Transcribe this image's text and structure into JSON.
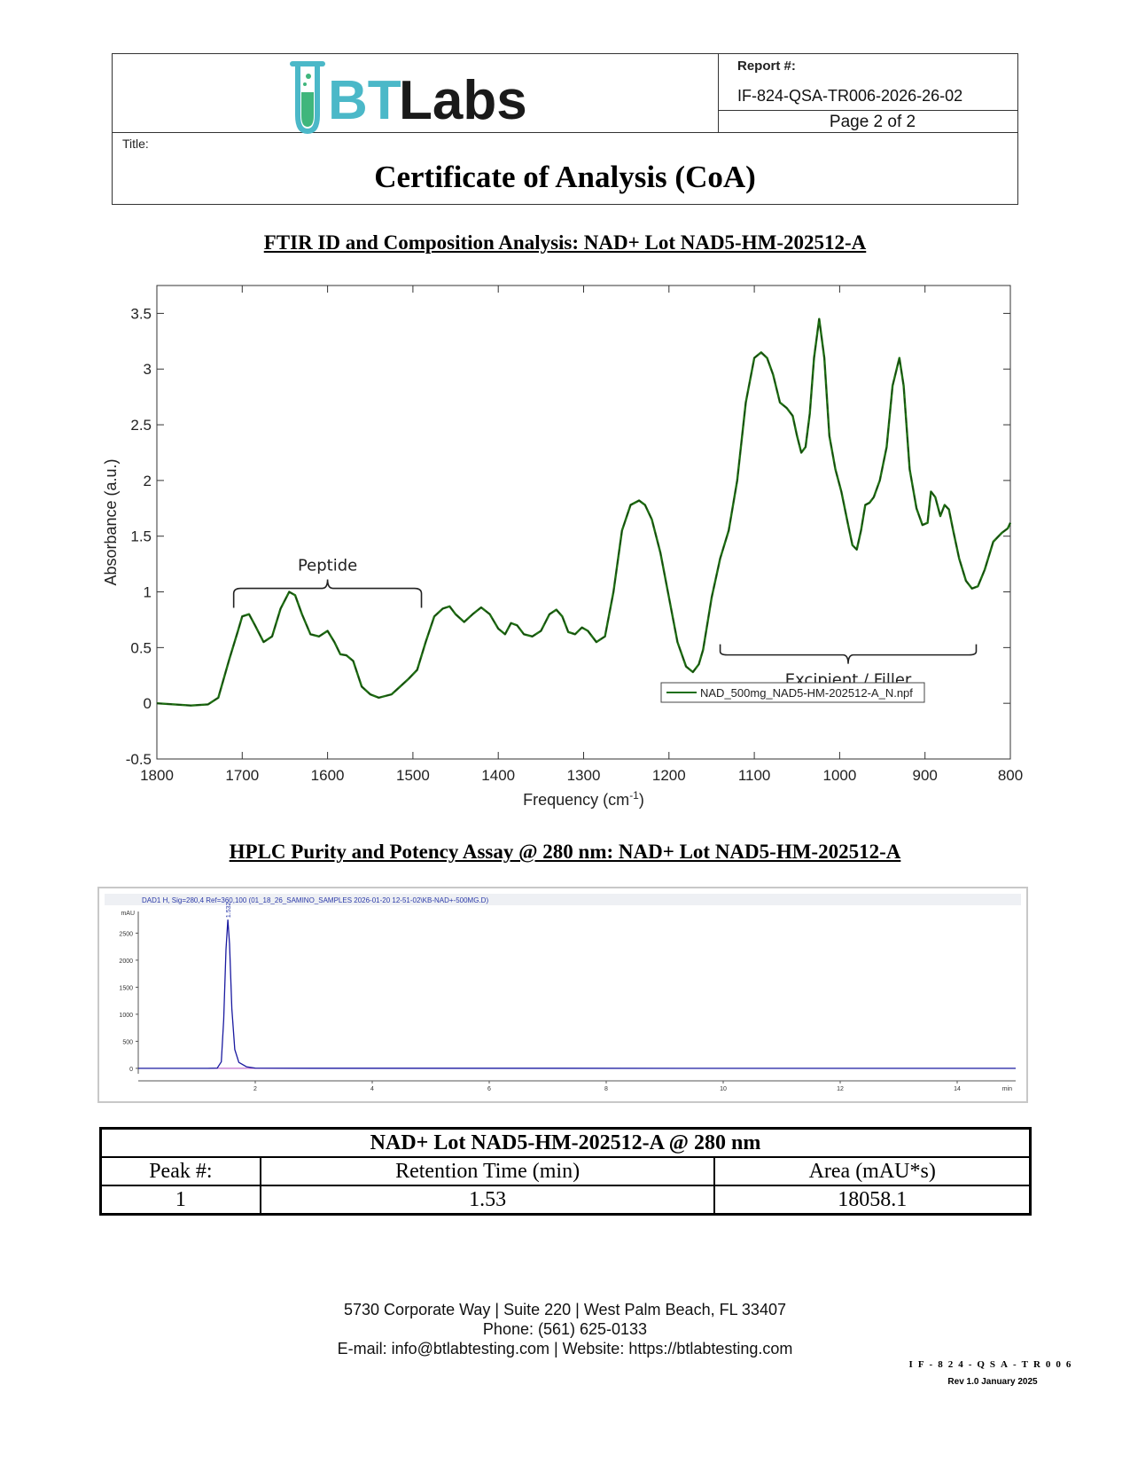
{
  "header": {
    "logo_text_bt": "BT",
    "logo_text_labs": "Labs",
    "report_label": "Report #:",
    "report_number": "IF-824-QSA-TR006-2026-26-02",
    "page_indicator": "Page 2 of 2",
    "title_label": "Title:",
    "doc_title": "Certificate of Analysis (CoA)"
  },
  "colors": {
    "logo_teal": "#4bb8c8",
    "logo_green": "#3fb67c",
    "ftir_line": "#1e6f12",
    "hplc_trace": "#1a1aa0",
    "hplc_baseline": "#b050c0"
  },
  "ftir": {
    "section_title": "FTIR ID and Composition Analysis: NAD+  Lot NAD5-HM-202512-A",
    "annotation_peptide": "Peptide",
    "annotation_excipient": "Excipient / Filler"
  },
  "hplc": {
    "section_title": "HPLC Purity and Potency Assay @ 280 nm: NAD+  Lot NAD5-HM-202512-A",
    "window_title": "DAD1 H, Sig=280,4 Ref=360,100 (01_18_26_SAMINO_SAMPLES 2026-01-20 12-51-02\\KB-NAD+-500MG.D)"
  },
  "chart_data": [
    {
      "type": "line",
      "xlabel": "Frequency (cm",
      "xlabel_sup": "-1",
      "xlabel_close": ")",
      "ylabel": "Absorbance (a.u.)",
      "xlim": [
        1800,
        800
      ],
      "ylim": [
        -0.5,
        3.75
      ],
      "x_ticks": [
        1800,
        1700,
        1600,
        1500,
        1400,
        1300,
        1200,
        1100,
        1000,
        900,
        800
      ],
      "y_ticks": [
        -0.5,
        0,
        0.5,
        1,
        1.5,
        2,
        2.5,
        3,
        3.5
      ],
      "legend_position": "bottom-right",
      "series": [
        {
          "name": "NAD_500mg_NAD5-HM-202512-A_N.npf",
          "x": [
            1800,
            1780,
            1760,
            1740,
            1728,
            1715,
            1705,
            1700,
            1692,
            1685,
            1675,
            1665,
            1655,
            1645,
            1638,
            1630,
            1620,
            1610,
            1600,
            1592,
            1585,
            1578,
            1570,
            1560,
            1550,
            1540,
            1525,
            1515,
            1505,
            1495,
            1485,
            1475,
            1465,
            1457,
            1450,
            1440,
            1430,
            1420,
            1410,
            1400,
            1392,
            1385,
            1378,
            1370,
            1360,
            1350,
            1340,
            1332,
            1325,
            1318,
            1310,
            1302,
            1295,
            1285,
            1275,
            1265,
            1255,
            1245,
            1235,
            1228,
            1220,
            1210,
            1200,
            1190,
            1180,
            1172,
            1165,
            1160,
            1150,
            1140,
            1130,
            1120,
            1110,
            1100,
            1092,
            1085,
            1078,
            1070,
            1062,
            1055,
            1050,
            1045,
            1040,
            1035,
            1030,
            1024,
            1018,
            1012,
            1005,
            998,
            990,
            985,
            980,
            975,
            970,
            965,
            960,
            953,
            945,
            938,
            930,
            925,
            918,
            910,
            903,
            897,
            893,
            888,
            882,
            877,
            872,
            867,
            860,
            852,
            845,
            838,
            830,
            820,
            810,
            803,
            800
          ],
          "y": [
            0,
            -0.01,
            -0.02,
            -0.01,
            0.05,
            0.4,
            0.65,
            0.78,
            0.8,
            0.7,
            0.55,
            0.6,
            0.85,
            1.0,
            0.97,
            0.8,
            0.62,
            0.6,
            0.65,
            0.55,
            0.44,
            0.43,
            0.38,
            0.15,
            0.08,
            0.05,
            0.08,
            0.15,
            0.22,
            0.3,
            0.55,
            0.78,
            0.85,
            0.87,
            0.8,
            0.73,
            0.8,
            0.86,
            0.8,
            0.67,
            0.62,
            0.72,
            0.7,
            0.62,
            0.6,
            0.65,
            0.8,
            0.84,
            0.78,
            0.64,
            0.62,
            0.68,
            0.65,
            0.55,
            0.6,
            1.0,
            1.55,
            1.78,
            1.82,
            1.78,
            1.65,
            1.35,
            0.95,
            0.55,
            0.33,
            0.28,
            0.35,
            0.48,
            0.95,
            1.3,
            1.55,
            2.0,
            2.7,
            3.1,
            3.15,
            3.1,
            2.95,
            2.7,
            2.65,
            2.58,
            2.4,
            2.25,
            2.3,
            2.6,
            3.1,
            3.45,
            3.1,
            2.4,
            2.1,
            1.9,
            1.6,
            1.42,
            1.38,
            1.55,
            1.78,
            1.8,
            1.85,
            2.0,
            2.3,
            2.85,
            3.1,
            2.85,
            2.1,
            1.75,
            1.6,
            1.62,
            1.9,
            1.85,
            1.68,
            1.78,
            1.74,
            1.55,
            1.3,
            1.1,
            1.03,
            1.05,
            1.2,
            1.45,
            1.53,
            1.57,
            1.62
          ]
        }
      ]
    },
    {
      "type": "line",
      "xlabel_unit": "min",
      "ylabel_unit": "mAU",
      "xlim": [
        0,
        15
      ],
      "ylim": [
        -100,
        2900
      ],
      "x_ticks": [
        2,
        4,
        6,
        8,
        10,
        12,
        14
      ],
      "y_ticks": [
        0,
        500,
        1000,
        1500,
        2000,
        2500
      ],
      "peak_label": "1.532",
      "series": [
        {
          "x": [
            0,
            1.2,
            1.35,
            1.42,
            1.46,
            1.5,
            1.532,
            1.56,
            1.6,
            1.65,
            1.72,
            1.85,
            2.0,
            3,
            5.5,
            15
          ],
          "y": [
            0,
            0,
            5,
            120,
            900,
            2200,
            2750,
            2300,
            1100,
            350,
            110,
            30,
            5,
            2,
            2,
            0
          ]
        }
      ]
    }
  ],
  "table": {
    "caption": "NAD+  Lot NAD5-HM-202512-A @ 280 nm",
    "headers": [
      "Peak #:",
      "Retention Time (min)",
      "Area (mAU*s)"
    ],
    "rows": [
      [
        "1",
        "1.53",
        "18058.1"
      ]
    ]
  },
  "footer": {
    "address": "5730 Corporate Way | Suite 220 | West Palm Beach, FL 33407",
    "phone": "Phone: (561) 625-0133",
    "contact": "E-mail: info@btlabtesting.com | Website: https://btlabtesting.com",
    "doc_code": "IF-824-QSA-TR006",
    "revision": "Rev 1.0 January 2025"
  }
}
